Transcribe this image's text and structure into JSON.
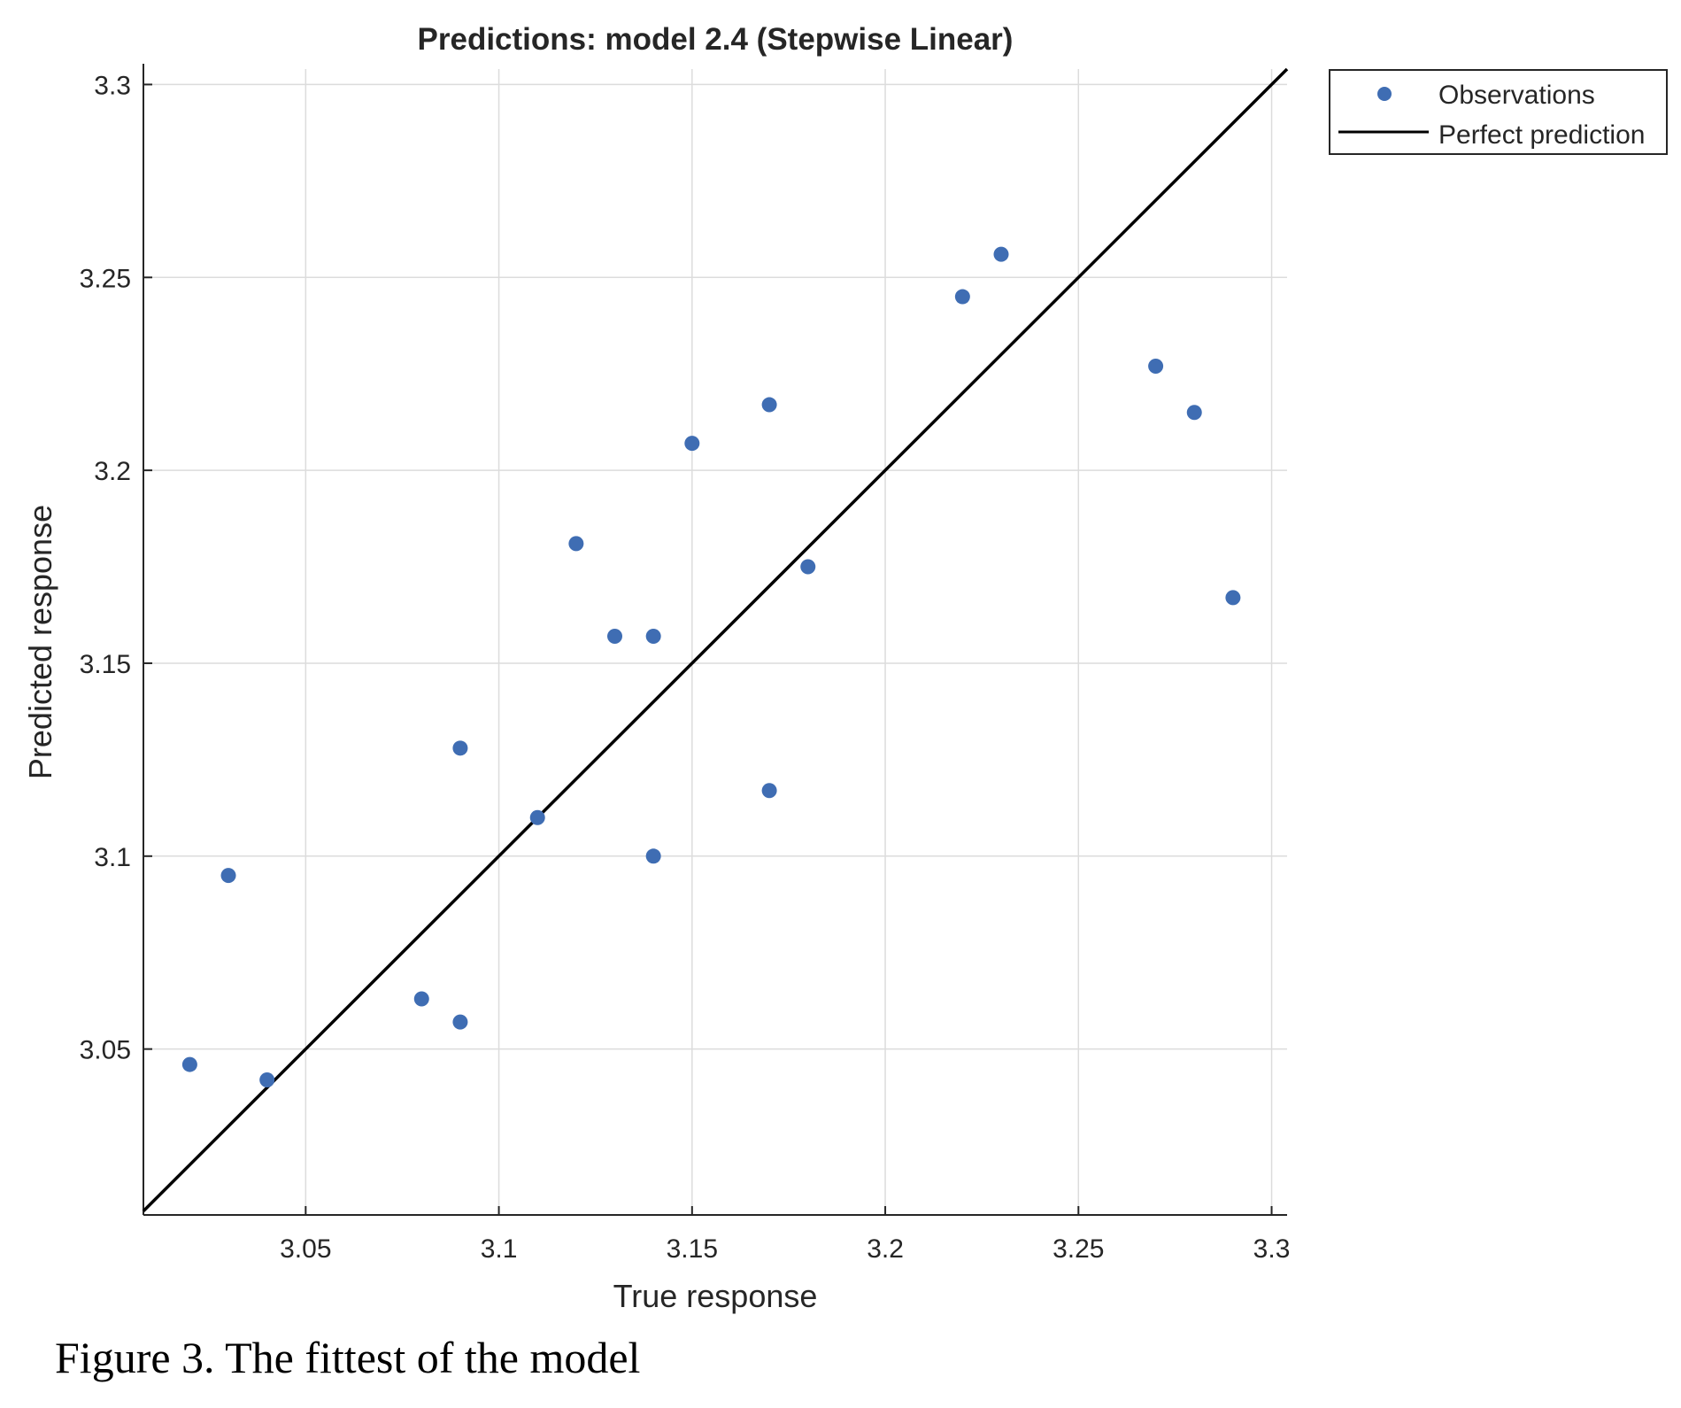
{
  "chart_data": {
    "type": "scatter",
    "title": "Predictions: model 2.4 (Stepwise Linear)",
    "xlabel": "True response",
    "ylabel": "Predicted response",
    "xlim": [
      3.008,
      3.304
    ],
    "ylim": [
      3.007,
      3.304
    ],
    "x_ticks": [
      3.05,
      3.1,
      3.15,
      3.2,
      3.25,
      3.3
    ],
    "x_tick_labels": [
      "3.05",
      "3.1",
      "3.15",
      "3.2",
      "3.25",
      "3.3"
    ],
    "y_ticks": [
      3.05,
      3.1,
      3.15,
      3.2,
      3.25,
      3.3
    ],
    "y_tick_labels": [
      "3.05",
      "3.1",
      "3.15",
      "3.2",
      "3.25",
      "3.3"
    ],
    "grid": true,
    "legend_position": "outside-top-right",
    "series": [
      {
        "name": "Observations",
        "kind": "points",
        "color": "#3f6db3",
        "points": [
          {
            "x": 3.02,
            "y": 3.046
          },
          {
            "x": 3.03,
            "y": 3.095
          },
          {
            "x": 3.04,
            "y": 3.042
          },
          {
            "x": 3.08,
            "y": 3.063
          },
          {
            "x": 3.09,
            "y": 3.057
          },
          {
            "x": 3.09,
            "y": 3.128
          },
          {
            "x": 3.11,
            "y": 3.11
          },
          {
            "x": 3.12,
            "y": 3.181
          },
          {
            "x": 3.13,
            "y": 3.157
          },
          {
            "x": 3.14,
            "y": 3.157
          },
          {
            "x": 3.14,
            "y": 3.1
          },
          {
            "x": 3.15,
            "y": 3.207
          },
          {
            "x": 3.17,
            "y": 3.217
          },
          {
            "x": 3.17,
            "y": 3.117
          },
          {
            "x": 3.18,
            "y": 3.175
          },
          {
            "x": 3.22,
            "y": 3.245
          },
          {
            "x": 3.23,
            "y": 3.256
          },
          {
            "x": 3.27,
            "y": 3.227
          },
          {
            "x": 3.28,
            "y": 3.215
          },
          {
            "x": 3.29,
            "y": 3.167
          }
        ]
      },
      {
        "name": "Perfect prediction",
        "kind": "line",
        "color": "#000000",
        "x": [
          3.008,
          3.304
        ],
        "y": [
          3.008,
          3.304
        ]
      }
    ]
  },
  "caption": "Figure 3. The fittest of the model"
}
